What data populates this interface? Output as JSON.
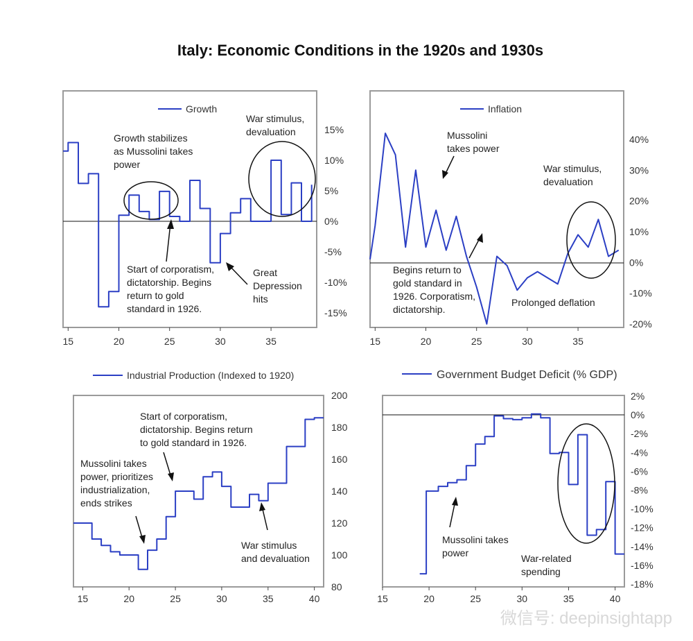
{
  "title": "Italy: Economic Conditions in the 1920s and 1930s",
  "watermark": "微信号: deepinsightapp",
  "chart_data": [
    {
      "type": "line",
      "series": [
        {
          "name": "Growth",
          "x": [
            14,
            15,
            15,
            16,
            16,
            17,
            17,
            18,
            18,
            19,
            19,
            20,
            20,
            21,
            21,
            22,
            22,
            23,
            23,
            24,
            24,
            25,
            25,
            26,
            26,
            27,
            27,
            28,
            28,
            29,
            29,
            30,
            30,
            31,
            31,
            32,
            32,
            33,
            33,
            34,
            34,
            35,
            35,
            36,
            36,
            37,
            37,
            38,
            38,
            39,
            39
          ],
          "values": [
            11.5,
            11.5,
            12.9,
            12.9,
            6.2,
            6.2,
            7.8,
            7.8,
            -14,
            -14,
            -11.5,
            -11.5,
            1,
            1,
            4.3,
            4.3,
            1.6,
            1.6,
            0.3,
            0.3,
            4.9,
            4.9,
            0.8,
            0.8,
            0,
            0,
            6.7,
            6.7,
            2.1,
            2.1,
            -6.8,
            -6.8,
            -2,
            -2,
            1.4,
            1.4,
            3.7,
            3.7,
            0,
            0,
            0,
            0,
            10,
            10,
            1.1,
            1.1,
            6.3,
            6.3,
            0,
            0,
            6
          ]
        }
      ],
      "ylim": [
        -17,
        19
      ],
      "xlim": [
        14.5,
        39.5
      ],
      "yticks": [
        "15%",
        "10%",
        "5%",
        "0%",
        "-5%",
        "-10%",
        "-15%"
      ],
      "ytick_values": [
        15,
        10,
        5,
        0,
        -5,
        -10,
        -15
      ],
      "xticks": [
        "15",
        "20",
        "25",
        "30",
        "35"
      ],
      "xtick_values": [
        15,
        20,
        25,
        30,
        35
      ],
      "annotations": [
        "Growth stabilizes as Mussolini takes power",
        "War stimulus, devaluation",
        "Start of corporatism, dictatorship. Begins return to gold standard in 1926.",
        "Great Depression hits"
      ]
    },
    {
      "type": "line",
      "series": [
        {
          "name": "Inflation",
          "x": [
            14,
            15,
            16,
            17,
            18,
            19,
            20,
            21,
            22,
            23,
            24,
            25,
            26,
            27,
            28,
            29,
            30,
            31,
            32,
            33,
            34,
            35,
            36,
            37,
            38,
            39
          ],
          "values": [
            1,
            12,
            42,
            35,
            5,
            30,
            5,
            17,
            4,
            15,
            2,
            -8,
            -20,
            2,
            -1,
            -9,
            -5,
            -3,
            -5,
            -7,
            3,
            9,
            5,
            14,
            2,
            4
          ]
        }
      ],
      "ylim": [
        -22,
        44
      ],
      "xlim": [
        14.5,
        39.5
      ],
      "yticks": [
        "40%",
        "30%",
        "20%",
        "10%",
        "0%",
        "-10%",
        "-20%"
      ],
      "ytick_values": [
        40,
        30,
        20,
        10,
        0,
        -10,
        -20
      ],
      "xticks": [
        "15",
        "20",
        "25",
        "30",
        "35"
      ],
      "xtick_values": [
        15,
        20,
        25,
        30,
        35
      ],
      "annotations": [
        "Mussolini takes power",
        "War stimulus, devaluation",
        "Begins return to gold standard in 1926. Corporatism, dictatorship.",
        "Prolonged deflation"
      ]
    },
    {
      "type": "line",
      "series": [
        {
          "name": "Industrial Production (Indexed to 1920)",
          "x": [
            14,
            15,
            15,
            16,
            16,
            17,
            17,
            18,
            18,
            19,
            19,
            20,
            20,
            21,
            21,
            22,
            22,
            23,
            23,
            24,
            24,
            25,
            25,
            26,
            26,
            27,
            27,
            28,
            28,
            29,
            29,
            30,
            30,
            31,
            31,
            32,
            32,
            33,
            33,
            34,
            34,
            35,
            35,
            36,
            36,
            37,
            37,
            38,
            38,
            39,
            39,
            40,
            40,
            41
          ],
          "values": [
            120,
            120,
            120,
            120,
            110,
            110,
            106,
            106,
            102,
            102,
            100,
            100,
            100,
            100,
            91,
            91,
            103,
            103,
            110,
            110,
            124,
            124,
            140,
            140,
            140,
            140,
            135,
            135,
            149,
            149,
            152,
            152,
            143,
            143,
            130,
            130,
            130,
            130,
            138,
            138,
            134,
            134,
            145,
            145,
            145,
            145,
            168,
            168,
            168,
            168,
            185,
            185,
            186,
            186
          ]
        }
      ],
      "ylim": [
        80,
        200
      ],
      "xlim": [
        14,
        41
      ],
      "yticks": [
        "200",
        "180",
        "160",
        "140",
        "120",
        "100",
        "80"
      ],
      "ytick_values": [
        200,
        180,
        160,
        140,
        120,
        100,
        80
      ],
      "xticks": [
        "15",
        "20",
        "25",
        "30",
        "35",
        "40"
      ],
      "xtick_values": [
        15,
        20,
        25,
        30,
        35,
        40
      ],
      "annotations": [
        "Start of corporatism, dictatorship. Begins return to gold standard in 1926.",
        "Mussolini takes power, prioritizes industrialization, ends strikes",
        "War stimulus and devaluation"
      ]
    },
    {
      "type": "line",
      "series": [
        {
          "name": "Government Budget Deficit (% GDP)",
          "x": [
            19,
            19.7,
            19.7,
            21,
            21,
            22,
            22,
            23,
            23,
            24,
            24,
            25,
            25,
            26,
            26,
            27,
            27,
            28,
            28,
            29,
            29,
            30,
            30,
            31,
            31,
            32,
            32,
            33,
            33,
            34,
            34,
            35,
            35,
            36,
            36,
            37,
            37,
            38,
            38,
            39,
            39,
            40,
            40,
            41
          ],
          "values": [
            -16.9,
            -16.9,
            -8.1,
            -8.1,
            -7.6,
            -7.6,
            -7.2,
            -7.2,
            -6.9,
            -6.9,
            -5.4,
            -5.4,
            -3.1,
            -3.1,
            -2.3,
            -2.3,
            -0.1,
            -0.1,
            -0.4,
            -0.4,
            -0.5,
            -0.5,
            -0.3,
            -0.3,
            0.1,
            0.1,
            -0.3,
            -0.3,
            -4.1,
            -4.1,
            -4.0,
            -4.0,
            -7.4,
            -7.4,
            -2.1,
            -2.1,
            -12.8,
            -12.8,
            -12.2,
            -12.2,
            -7.1,
            -7.1,
            -14.8,
            -14.8
          ]
        }
      ],
      "ylim": [
        -18,
        2
      ],
      "xlim": [
        15,
        41
      ],
      "yticks": [
        "2%",
        "0%",
        "-2%",
        "-4%",
        "-6%",
        "-8%",
        "-10%",
        "-12%",
        "-14%",
        "-16%",
        "-18%"
      ],
      "ytick_values": [
        2,
        0,
        -2,
        -4,
        -6,
        -8,
        -10,
        -12,
        -14,
        -16,
        -18
      ],
      "xticks": [
        "15",
        "20",
        "25",
        "30",
        "35",
        "40"
      ],
      "xtick_values": [
        15,
        20,
        25,
        30,
        35,
        40
      ],
      "annotations": [
        "Mussolini takes power",
        "War-related spending"
      ]
    }
  ]
}
